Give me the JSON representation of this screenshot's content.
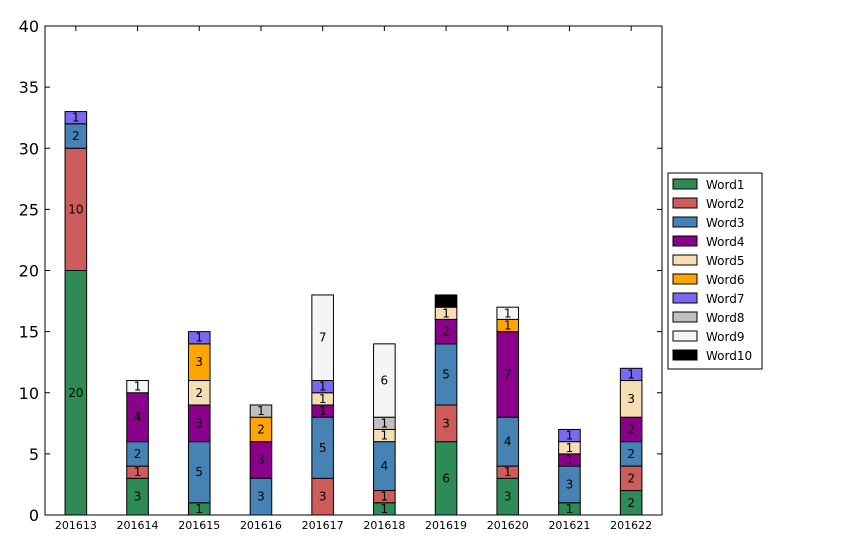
{
  "chart_data": {
    "type": "bar",
    "stacked": true,
    "title": "",
    "xlabel": "",
    "ylabel": "",
    "ylim": [
      0,
      40
    ],
    "yticks": [
      0,
      5,
      10,
      15,
      20,
      25,
      30,
      35,
      40
    ],
    "categories": [
      "201613",
      "201614",
      "201615",
      "201616",
      "201617",
      "201618",
      "201619",
      "201620",
      "201621",
      "201622"
    ],
    "series": [
      {
        "name": "Word1",
        "color": "#2e8b57",
        "values": [
          20,
          3,
          1,
          0,
          0,
          1,
          6,
          3,
          1,
          2
        ]
      },
      {
        "name": "Word2",
        "color": "#cd5c5c",
        "values": [
          10,
          1,
          0,
          0,
          3,
          1,
          3,
          1,
          0,
          2
        ]
      },
      {
        "name": "Word3",
        "color": "#4682b4",
        "values": [
          2,
          2,
          5,
          3,
          5,
          4,
          5,
          4,
          3,
          2
        ]
      },
      {
        "name": "Word4",
        "color": "#8b008b",
        "values": [
          0,
          4,
          3,
          3,
          1,
          0,
          2,
          7,
          1,
          2
        ]
      },
      {
        "name": "Word5",
        "color": "#f5deb3",
        "values": [
          0,
          0,
          2,
          0,
          1,
          1,
          1,
          0,
          1,
          3
        ]
      },
      {
        "name": "Word6",
        "color": "#ffa500",
        "values": [
          0,
          0,
          3,
          2,
          0,
          0,
          0,
          1,
          0,
          0
        ]
      },
      {
        "name": "Word7",
        "color": "#7b68ee",
        "values": [
          1,
          0,
          1,
          0,
          1,
          0,
          0,
          0,
          1,
          1
        ]
      },
      {
        "name": "Word8",
        "color": "#c0c0c0",
        "values": [
          0,
          0,
          0,
          1,
          0,
          1,
          0,
          0,
          0,
          0
        ]
      },
      {
        "name": "Word9",
        "color": "#f5f5f5",
        "values": [
          0,
          1,
          0,
          0,
          7,
          6,
          0,
          1,
          0,
          0
        ]
      },
      {
        "name": "Word10",
        "color": "#000000",
        "values": [
          0,
          0,
          0,
          0,
          0,
          0,
          1,
          0,
          0,
          0
        ]
      }
    ],
    "legend_position": "right"
  }
}
